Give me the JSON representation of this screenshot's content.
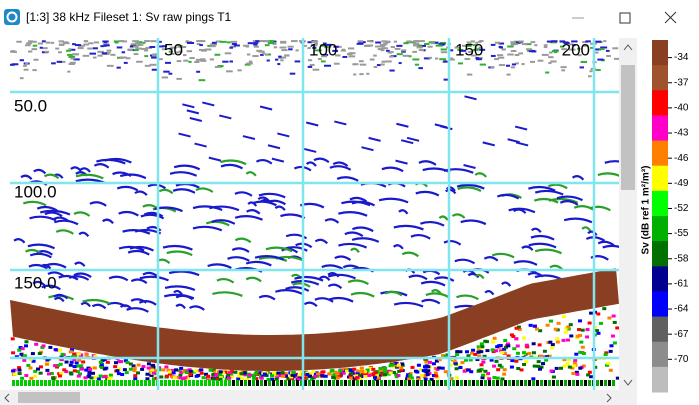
{
  "window": {
    "title": "[1:3] 38 kHz Fileset 1: Sv raw pings T1"
  },
  "echogram": {
    "ping_ticks": [
      "50",
      "100",
      "150",
      "200"
    ],
    "depth_labels": [
      "50.0",
      "100.0",
      "150.0"
    ]
  },
  "colorbar": {
    "label": "Sv (dB ref 1 m²/m³)",
    "ticks": [
      "-34",
      "-37",
      "-40",
      "-43",
      "-46",
      "-49",
      "-52",
      "-55",
      "-58",
      "-61",
      "-64",
      "-67",
      "-70"
    ],
    "colors": [
      "#8a3f22",
      "#a0522d",
      "#ff0000",
      "#ff00c8",
      "#ff8000",
      "#ffff00",
      "#00ff00",
      "#00b000",
      "#007000",
      "#000090",
      "#0000ff",
      "#606060",
      "#8c8c8c",
      "#bdbdbd"
    ]
  }
}
